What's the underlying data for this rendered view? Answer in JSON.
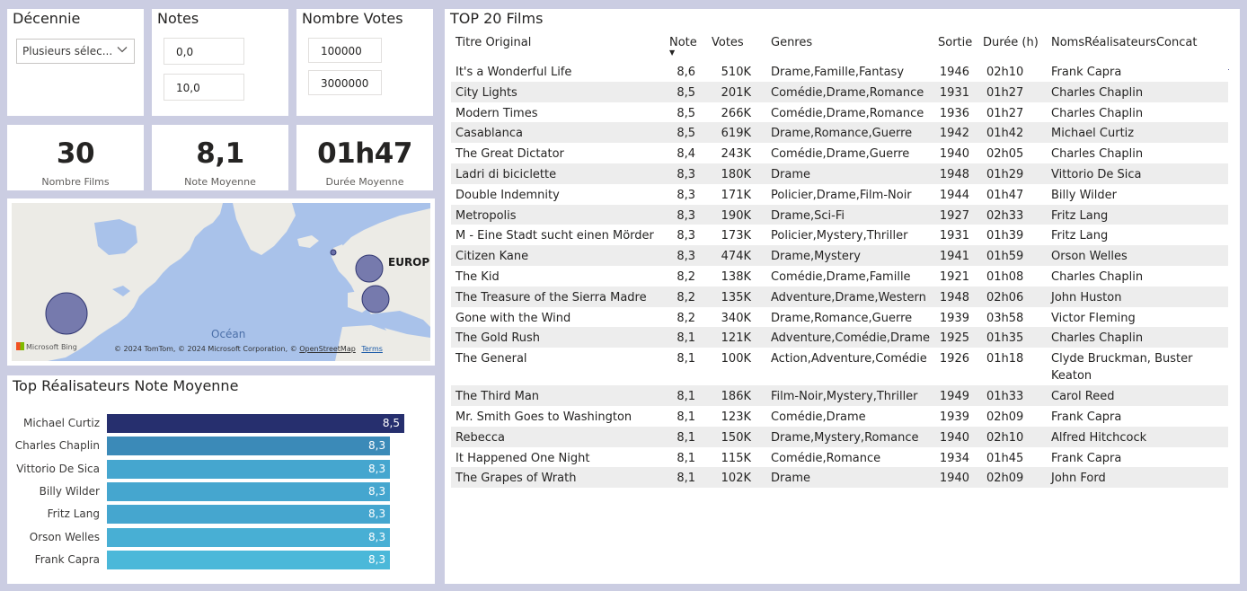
{
  "slicers": {
    "decennie": {
      "title": "Décennie",
      "value": "Plusieurs sélec..."
    },
    "notes": {
      "title": "Notes",
      "min": "0,0",
      "max": "10,0"
    },
    "votes": {
      "title": "Nombre Votes",
      "min": "100000",
      "max": "3000000"
    }
  },
  "kpis": [
    {
      "value": "30",
      "label": "Nombre Films"
    },
    {
      "value": "8,1",
      "label": "Note Moyenne"
    },
    {
      "value": "01h47",
      "label": "Durée Moyenne"
    }
  ],
  "map": {
    "region_label": "EUROPE",
    "ocean_label": "Océan",
    "bing_label": "Microsoft Bing",
    "credits": "© 2024 TomTom, © 2024 Microsoft Corporation, ©",
    "osm_link": "OpenStreetMap",
    "terms_link": "Terms",
    "bubble_color": "#6b70a8"
  },
  "director_chart": {
    "title": "Top Réalisateurs Note Moyenne",
    "chart_data": {
      "type": "bar",
      "orientation": "horizontal",
      "categories": [
        "Michael Curtiz",
        "Charles Chaplin",
        "Vittorio De Sica",
        "Billy Wilder",
        "Fritz Lang",
        "Orson Welles",
        "Frank Capra"
      ],
      "values": [
        8.5,
        8.3,
        8.3,
        8.3,
        8.3,
        8.3,
        8.3
      ],
      "labels": [
        "8,5",
        "8,3",
        "8,3",
        "8,3",
        "8,3",
        "8,3",
        "8,3"
      ],
      "colors": [
        "#262f6e",
        "#3b8ab8",
        "#45a6cf",
        "#45a6cf",
        "#45a6cf",
        "#48afd4",
        "#4bb8d9"
      ]
    }
  },
  "table": {
    "title": "TOP 20 Films",
    "headers": {
      "title": "Titre Original",
      "note": "Note",
      "votes": "Votes",
      "genres": "Genres",
      "sortie": "Sortie",
      "duree": "Durée (h)",
      "directors": "NomsRéalisateursConcat"
    },
    "sort_indicator": "▼",
    "rows": [
      {
        "title": "It's a Wonderful Life",
        "note": "8,6",
        "votes": "510K",
        "genres": "Drame,Famille,Fantasy",
        "sortie": "1946",
        "duree": "02h10",
        "directors": "Frank Capra"
      },
      {
        "title": "City Lights",
        "note": "8,5",
        "votes": "201K",
        "genres": "Comédie,Drame,Romance",
        "sortie": "1931",
        "duree": "01h27",
        "directors": "Charles Chaplin"
      },
      {
        "title": "Modern Times",
        "note": "8,5",
        "votes": "266K",
        "genres": "Comédie,Drame,Romance",
        "sortie": "1936",
        "duree": "01h27",
        "directors": "Charles Chaplin"
      },
      {
        "title": "Casablanca",
        "note": "8,5",
        "votes": "619K",
        "genres": "Drame,Romance,Guerre",
        "sortie": "1942",
        "duree": "01h42",
        "directors": "Michael Curtiz"
      },
      {
        "title": "The Great Dictator",
        "note": "8,4",
        "votes": "243K",
        "genres": "Comédie,Drame,Guerre",
        "sortie": "1940",
        "duree": "02h05",
        "directors": "Charles Chaplin"
      },
      {
        "title": "Ladri di biciclette",
        "note": "8,3",
        "votes": "180K",
        "genres": "Drame",
        "sortie": "1948",
        "duree": "01h29",
        "directors": "Vittorio De Sica"
      },
      {
        "title": "Double Indemnity",
        "note": "8,3",
        "votes": "171K",
        "genres": "Policier,Drame,Film-Noir",
        "sortie": "1944",
        "duree": "01h47",
        "directors": "Billy Wilder"
      },
      {
        "title": "Metropolis",
        "note": "8,3",
        "votes": "190K",
        "genres": "Drame,Sci-Fi",
        "sortie": "1927",
        "duree": "02h33",
        "directors": "Fritz Lang"
      },
      {
        "title": "M - Eine Stadt sucht einen Mörder",
        "note": "8,3",
        "votes": "173K",
        "genres": "Policier,Mystery,Thriller",
        "sortie": "1931",
        "duree": "01h39",
        "directors": "Fritz Lang"
      },
      {
        "title": "Citizen Kane",
        "note": "8,3",
        "votes": "474K",
        "genres": "Drame,Mystery",
        "sortie": "1941",
        "duree": "01h59",
        "directors": "Orson Welles"
      },
      {
        "title": "The Kid",
        "note": "8,2",
        "votes": "138K",
        "genres": "Comédie,Drame,Famille",
        "sortie": "1921",
        "duree": "01h08",
        "directors": "Charles Chaplin"
      },
      {
        "title": "The Treasure of the Sierra Madre",
        "note": "8,2",
        "votes": "135K",
        "genres": "Adventure,Drame,Western",
        "sortie": "1948",
        "duree": "02h06",
        "directors": "John Huston"
      },
      {
        "title": "Gone with the Wind",
        "note": "8,2",
        "votes": "340K",
        "genres": "Drame,Romance,Guerre",
        "sortie": "1939",
        "duree": "03h58",
        "directors": "Victor Fleming"
      },
      {
        "title": "The Gold Rush",
        "note": "8,1",
        "votes": "121K",
        "genres": "Adventure,Comédie,Drame",
        "sortie": "1925",
        "duree": "01h35",
        "directors": "Charles Chaplin"
      },
      {
        "title": "The General",
        "note": "8,1",
        "votes": "100K",
        "genres": "Action,Adventure,Comédie",
        "sortie": "1926",
        "duree": "01h18",
        "directors": "Clyde Bruckman, Buster",
        "directors2": "Keaton"
      },
      {
        "title": "The Third Man",
        "note": "8,1",
        "votes": "186K",
        "genres": "Film-Noir,Mystery,Thriller",
        "sortie": "1949",
        "duree": "01h33",
        "directors": "Carol Reed"
      },
      {
        "title": "Mr. Smith Goes to Washington",
        "note": "8,1",
        "votes": "123K",
        "genres": "Comédie,Drame",
        "sortie": "1939",
        "duree": "02h09",
        "directors": "Frank Capra"
      },
      {
        "title": "Rebecca",
        "note": "8,1",
        "votes": "150K",
        "genres": "Drame,Mystery,Romance",
        "sortie": "1940",
        "duree": "02h10",
        "directors": "Alfred Hitchcock"
      },
      {
        "title": "It Happened One Night",
        "note": "8,1",
        "votes": "115K",
        "genres": "Comédie,Romance",
        "sortie": "1934",
        "duree": "01h45",
        "directors": "Frank Capra"
      },
      {
        "title": "The Grapes of Wrath",
        "note": "8,1",
        "votes": "102K",
        "genres": "Drame",
        "sortie": "1940",
        "duree": "02h09",
        "directors": "John Ford"
      }
    ]
  }
}
